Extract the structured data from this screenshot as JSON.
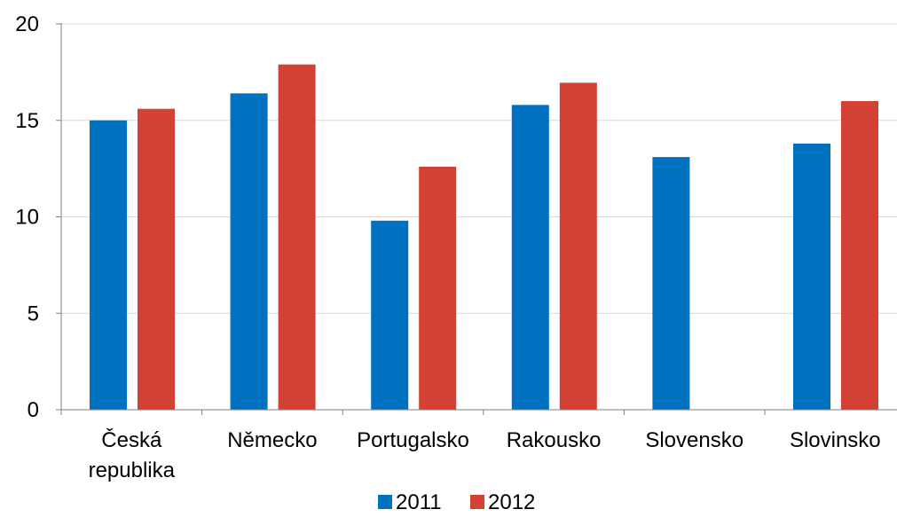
{
  "chart_data": {
    "type": "bar",
    "categories": [
      [
        "Česká",
        "republika"
      ],
      [
        "Německo"
      ],
      [
        "Portugalsko"
      ],
      [
        "Rakousko"
      ],
      [
        "Slovensko"
      ],
      [
        "Slovinsko"
      ]
    ],
    "series": [
      {
        "name": "2011",
        "color": "#0070C0",
        "values": [
          15.0,
          16.4,
          9.8,
          15.8,
          13.1,
          13.8
        ]
      },
      {
        "name": "2012",
        "color": "#D34134",
        "values": [
          15.6,
          17.9,
          12.6,
          16.95,
          null,
          16.0
        ]
      }
    ],
    "ylim": [
      0,
      20
    ],
    "yticks": [
      0,
      5,
      10,
      15,
      20
    ],
    "grid": true,
    "legend_position": "bottom"
  }
}
